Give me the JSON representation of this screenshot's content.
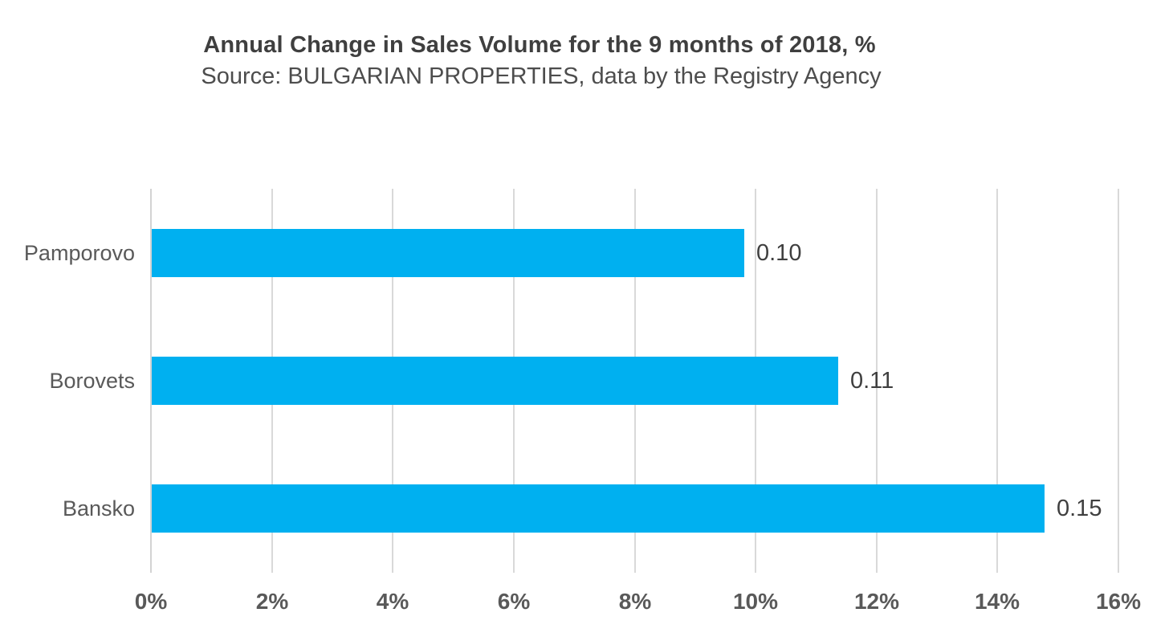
{
  "page": {
    "background": "#ffffff"
  },
  "chart_data": {
    "type": "bar",
    "orientation": "horizontal",
    "title": "Annual Change in Sales Volume for the 9 months of 2018, %",
    "subtitle": "Source: BULGARIAN PROPERTIES, data by the Registry Agency",
    "categories": [
      "Pamporovo",
      "Borovets",
      "Bansko"
    ],
    "values": [
      0.098,
      0.1135,
      0.1477
    ],
    "data_labels": [
      "0.10",
      "0.11",
      "0.15"
    ],
    "xlim": [
      0,
      0.16
    ],
    "x_ticks": [
      0,
      0.02,
      0.04,
      0.06,
      0.08,
      0.1,
      0.12,
      0.14,
      0.16
    ],
    "x_tick_labels": [
      "0%",
      "2%",
      "4%",
      "6%",
      "8%",
      "10%",
      "12%",
      "14%",
      "16%"
    ],
    "xlabel": "",
    "ylabel": "",
    "grid": "vertical-only",
    "legend": "none",
    "colors": {
      "bar": "#00b0f0",
      "gridline": "#d9d9d9",
      "axis_line": "#d3d3d3",
      "title_text": "#3f3f3f",
      "subtitle_text": "#4d4d4d",
      "category_text": "#595959",
      "tick_text": "#595959",
      "data_label_text": "#3f3f3f"
    }
  }
}
